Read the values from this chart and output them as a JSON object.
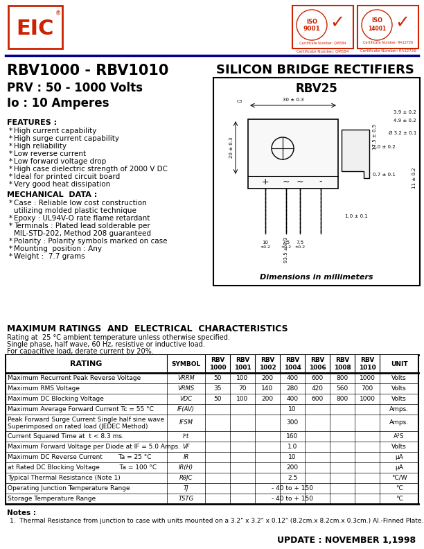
{
  "title_left": "RBV1000 - RBV1010",
  "title_right": "SILICON BRIDGE RECTIFIERS",
  "subtitle1": "PRV : 50 - 1000 Volts",
  "subtitle2": "Io : 10 Amperes",
  "features_title": "FEATURES :",
  "features": [
    "High current capability",
    "High surge current capability",
    "High reliability",
    "Low reverse current",
    "Low forward voltage drop",
    "High case dielectric strength of 2000 V DC",
    "Ideal for printed circuit board",
    "Very good heat dissipation"
  ],
  "mech_title": "MECHANICAL  DATA :",
  "mech": [
    [
      "*",
      "Case : Reliable low cost construction\n        utilizing molded plastic technique"
    ],
    [
      "*",
      "Epoxy : UL94V-O rate flame retardant"
    ],
    [
      "*",
      "Terminals : Plated lead solderable per\n        MIL-STD-202, Method 208 guaranteed"
    ],
    [
      "*",
      "Polarity : Polarity symbols marked on case"
    ],
    [
      "*",
      "Mounting  position : Any"
    ],
    [
      "*",
      "Weight :  7.7 grams"
    ]
  ],
  "diagram_title": "RBV25",
  "diagram_note": "Dimensions in millimeters",
  "ratings_title": "MAXIMUM RATINGS  AND  ELECTRICAL  CHARACTERISTICS",
  "ratings_note1": "Rating at  25 °C ambient temperature unless otherwise specified.",
  "ratings_note2": "Single phase, half wave, 60 Hz, resistive or inductive load.",
  "ratings_note3": "For capacitive load, derate current by 20%.",
  "col_headers": [
    "RATING",
    "SYMBOL",
    "RBV\n1000",
    "RBV\n1001",
    "RBV\n1002",
    "RBV\n1004",
    "RBV\n1006",
    "RBV\n1008",
    "RBV\n1010",
    "UNIT"
  ],
  "table_rows": [
    [
      "Maximum Recurrent Peak Reverse Voltage",
      "VRRM",
      "50",
      "100",
      "200",
      "400",
      "600",
      "800",
      "1000",
      "Volts"
    ],
    [
      "Maximum RMS Voltage",
      "VRMS",
      "35",
      "70",
      "140",
      "280",
      "420",
      "560",
      "700",
      "Volts"
    ],
    [
      "Maximum DC Blocking Voltage",
      "VDC",
      "50",
      "100",
      "200",
      "400",
      "600",
      "800",
      "1000",
      "Volts"
    ],
    [
      "Maximum Average Forward Current Tc = 55 °C",
      "IF(AV)",
      "",
      "",
      "",
      "10",
      "",
      "",
      "",
      "Amps."
    ],
    [
      "Peak Forward Surge Current Single half sine wave\nSuperimposed on rated load (JEDEC Method)",
      "IFSM",
      "",
      "",
      "",
      "300",
      "",
      "",
      "",
      "Amps."
    ],
    [
      "Current Squared Time at  t < 8.3 ms.",
      "I²t",
      "",
      "",
      "",
      "160",
      "",
      "",
      "",
      "A²S"
    ],
    [
      "Maximum Forward Voltage per Diode at IF = 5.0 Amps.",
      "VF",
      "",
      "",
      "",
      "1.0",
      "",
      "",
      "",
      "Volts"
    ],
    [
      "Maximum DC Reverse Current        Ta = 25 °C",
      "IR",
      "",
      "",
      "",
      "10",
      "",
      "",
      "",
      "µA"
    ],
    [
      "at Rated DC Blocking Voltage          Ta = 100 °C",
      "IR(H)",
      "",
      "",
      "",
      "200",
      "",
      "",
      "",
      "µA"
    ],
    [
      "Typical Thermal Resistance (Note 1)",
      "RθJC",
      "",
      "",
      "",
      "2.5",
      "",
      "",
      "",
      "°C/W"
    ],
    [
      "Operating Junction Temperature Range",
      "TJ",
      "",
      "",
      "",
      "- 40 to + 150",
      "",
      "",
      "",
      "°C"
    ],
    [
      "Storage Temperature Range",
      "TSTG",
      "",
      "",
      "",
      "- 40 to + 150",
      "",
      "",
      "",
      "°C"
    ]
  ],
  "note_title": "Notes :",
  "note1": "1.  Thermal Resistance from junction to case with units mounted on a 3.2\" x 3.2\" x 0.12\" (8.2cm.x 8.2cm.x 0.3cm.) Al.-Finned Plate.",
  "update": "UPDATE : NOVEMBER 1,1998",
  "bg_color": "#ffffff",
  "red_color": "#cc2200",
  "blue_color": "#00008B",
  "black": "#000000"
}
